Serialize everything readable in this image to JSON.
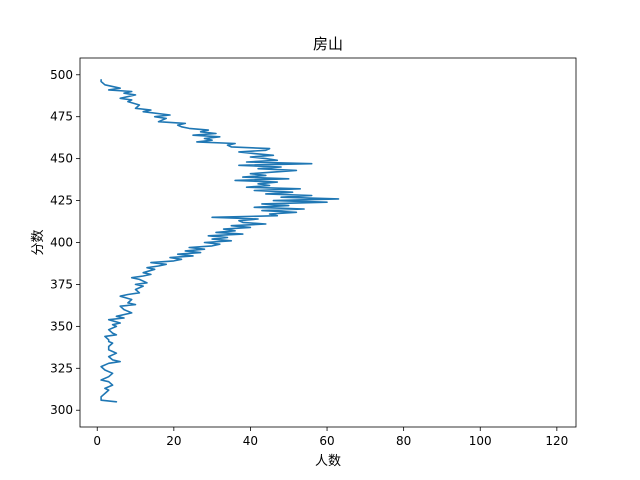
{
  "chart_data": {
    "type": "line",
    "title": "房山",
    "xlabel": "人数",
    "ylabel": "分数",
    "xlim": [
      -4.5,
      125
    ],
    "ylim": [
      290,
      510
    ],
    "x_ticks": [
      0,
      20,
      40,
      60,
      80,
      100,
      120
    ],
    "y_ticks": [
      300,
      325,
      350,
      375,
      400,
      425,
      450,
      475,
      500
    ],
    "grid": false,
    "color": "#1f77b4",
    "series": [
      {
        "x": [
          5,
          1,
          1,
          2,
          3,
          2,
          4,
          3,
          1,
          3,
          4,
          2,
          1,
          3,
          6,
          4,
          3,
          5,
          4,
          3,
          3,
          4,
          3,
          3,
          2,
          5,
          4,
          3,
          5,
          4,
          6,
          3,
          7,
          5,
          9,
          7,
          6,
          10,
          8,
          9,
          6,
          8,
          11,
          10,
          12,
          10,
          13,
          11,
          9,
          12,
          14,
          12,
          15,
          13,
          16,
          18,
          14,
          20,
          22,
          19,
          25,
          21,
          27,
          23,
          28,
          24,
          30,
          32,
          28,
          35,
          30,
          34,
          29,
          38,
          31,
          36,
          33,
          40,
          35,
          44,
          38,
          37,
          42,
          30,
          47,
          45,
          52,
          43,
          54,
          41,
          50,
          43,
          60,
          46,
          63,
          48,
          56,
          44,
          51,
          41,
          53,
          39,
          45,
          42,
          47,
          36,
          50,
          38,
          44,
          40,
          46,
          52,
          42,
          48,
          37,
          56,
          39,
          47,
          44,
          40,
          46,
          41,
          37,
          44,
          45,
          35,
          34,
          36,
          26,
          30,
          28,
          32,
          25,
          31,
          27,
          29,
          24,
          22,
          21,
          23,
          16,
          18,
          15,
          19,
          12,
          14,
          10,
          11,
          8,
          9,
          6,
          10,
          7,
          9,
          3,
          6,
          2,
          1,
          1
        ],
        "y": [
          305,
          306,
          308,
          310,
          312,
          313,
          315,
          317,
          318,
          320,
          322,
          324,
          326,
          328,
          329,
          330,
          332,
          334,
          335,
          336,
          338,
          340,
          341,
          342,
          344,
          345,
          346,
          348,
          350,
          351,
          352,
          354,
          355,
          356,
          358,
          360,
          362,
          363,
          364,
          366,
          368,
          369,
          370,
          372,
          374,
          375,
          376,
          378,
          379,
          380,
          381,
          382,
          384,
          385,
          386,
          387,
          388,
          389,
          390,
          391,
          392,
          393,
          394,
          395,
          396,
          397,
          398,
          399,
          400,
          401,
          402,
          403,
          404,
          405,
          406,
          407,
          408,
          409,
          410,
          411,
          412,
          413,
          414,
          415,
          416,
          417,
          418,
          419,
          420,
          421,
          422,
          423,
          424,
          425,
          426,
          427,
          428,
          429,
          430,
          431,
          432,
          433,
          434,
          435,
          436,
          437,
          438,
          439,
          440,
          441,
          442,
          443,
          444,
          445,
          446,
          447,
          448,
          449,
          450,
          451,
          452,
          453,
          454,
          455,
          456,
          457,
          458,
          459,
          460,
          461,
          462,
          463,
          464,
          465,
          466,
          467,
          468,
          469,
          470,
          471,
          472,
          474,
          475,
          476,
          478,
          479,
          480,
          482,
          484,
          485,
          486,
          488,
          489,
          490,
          491,
          492,
          494,
          496,
          497
        ]
      }
    ]
  }
}
